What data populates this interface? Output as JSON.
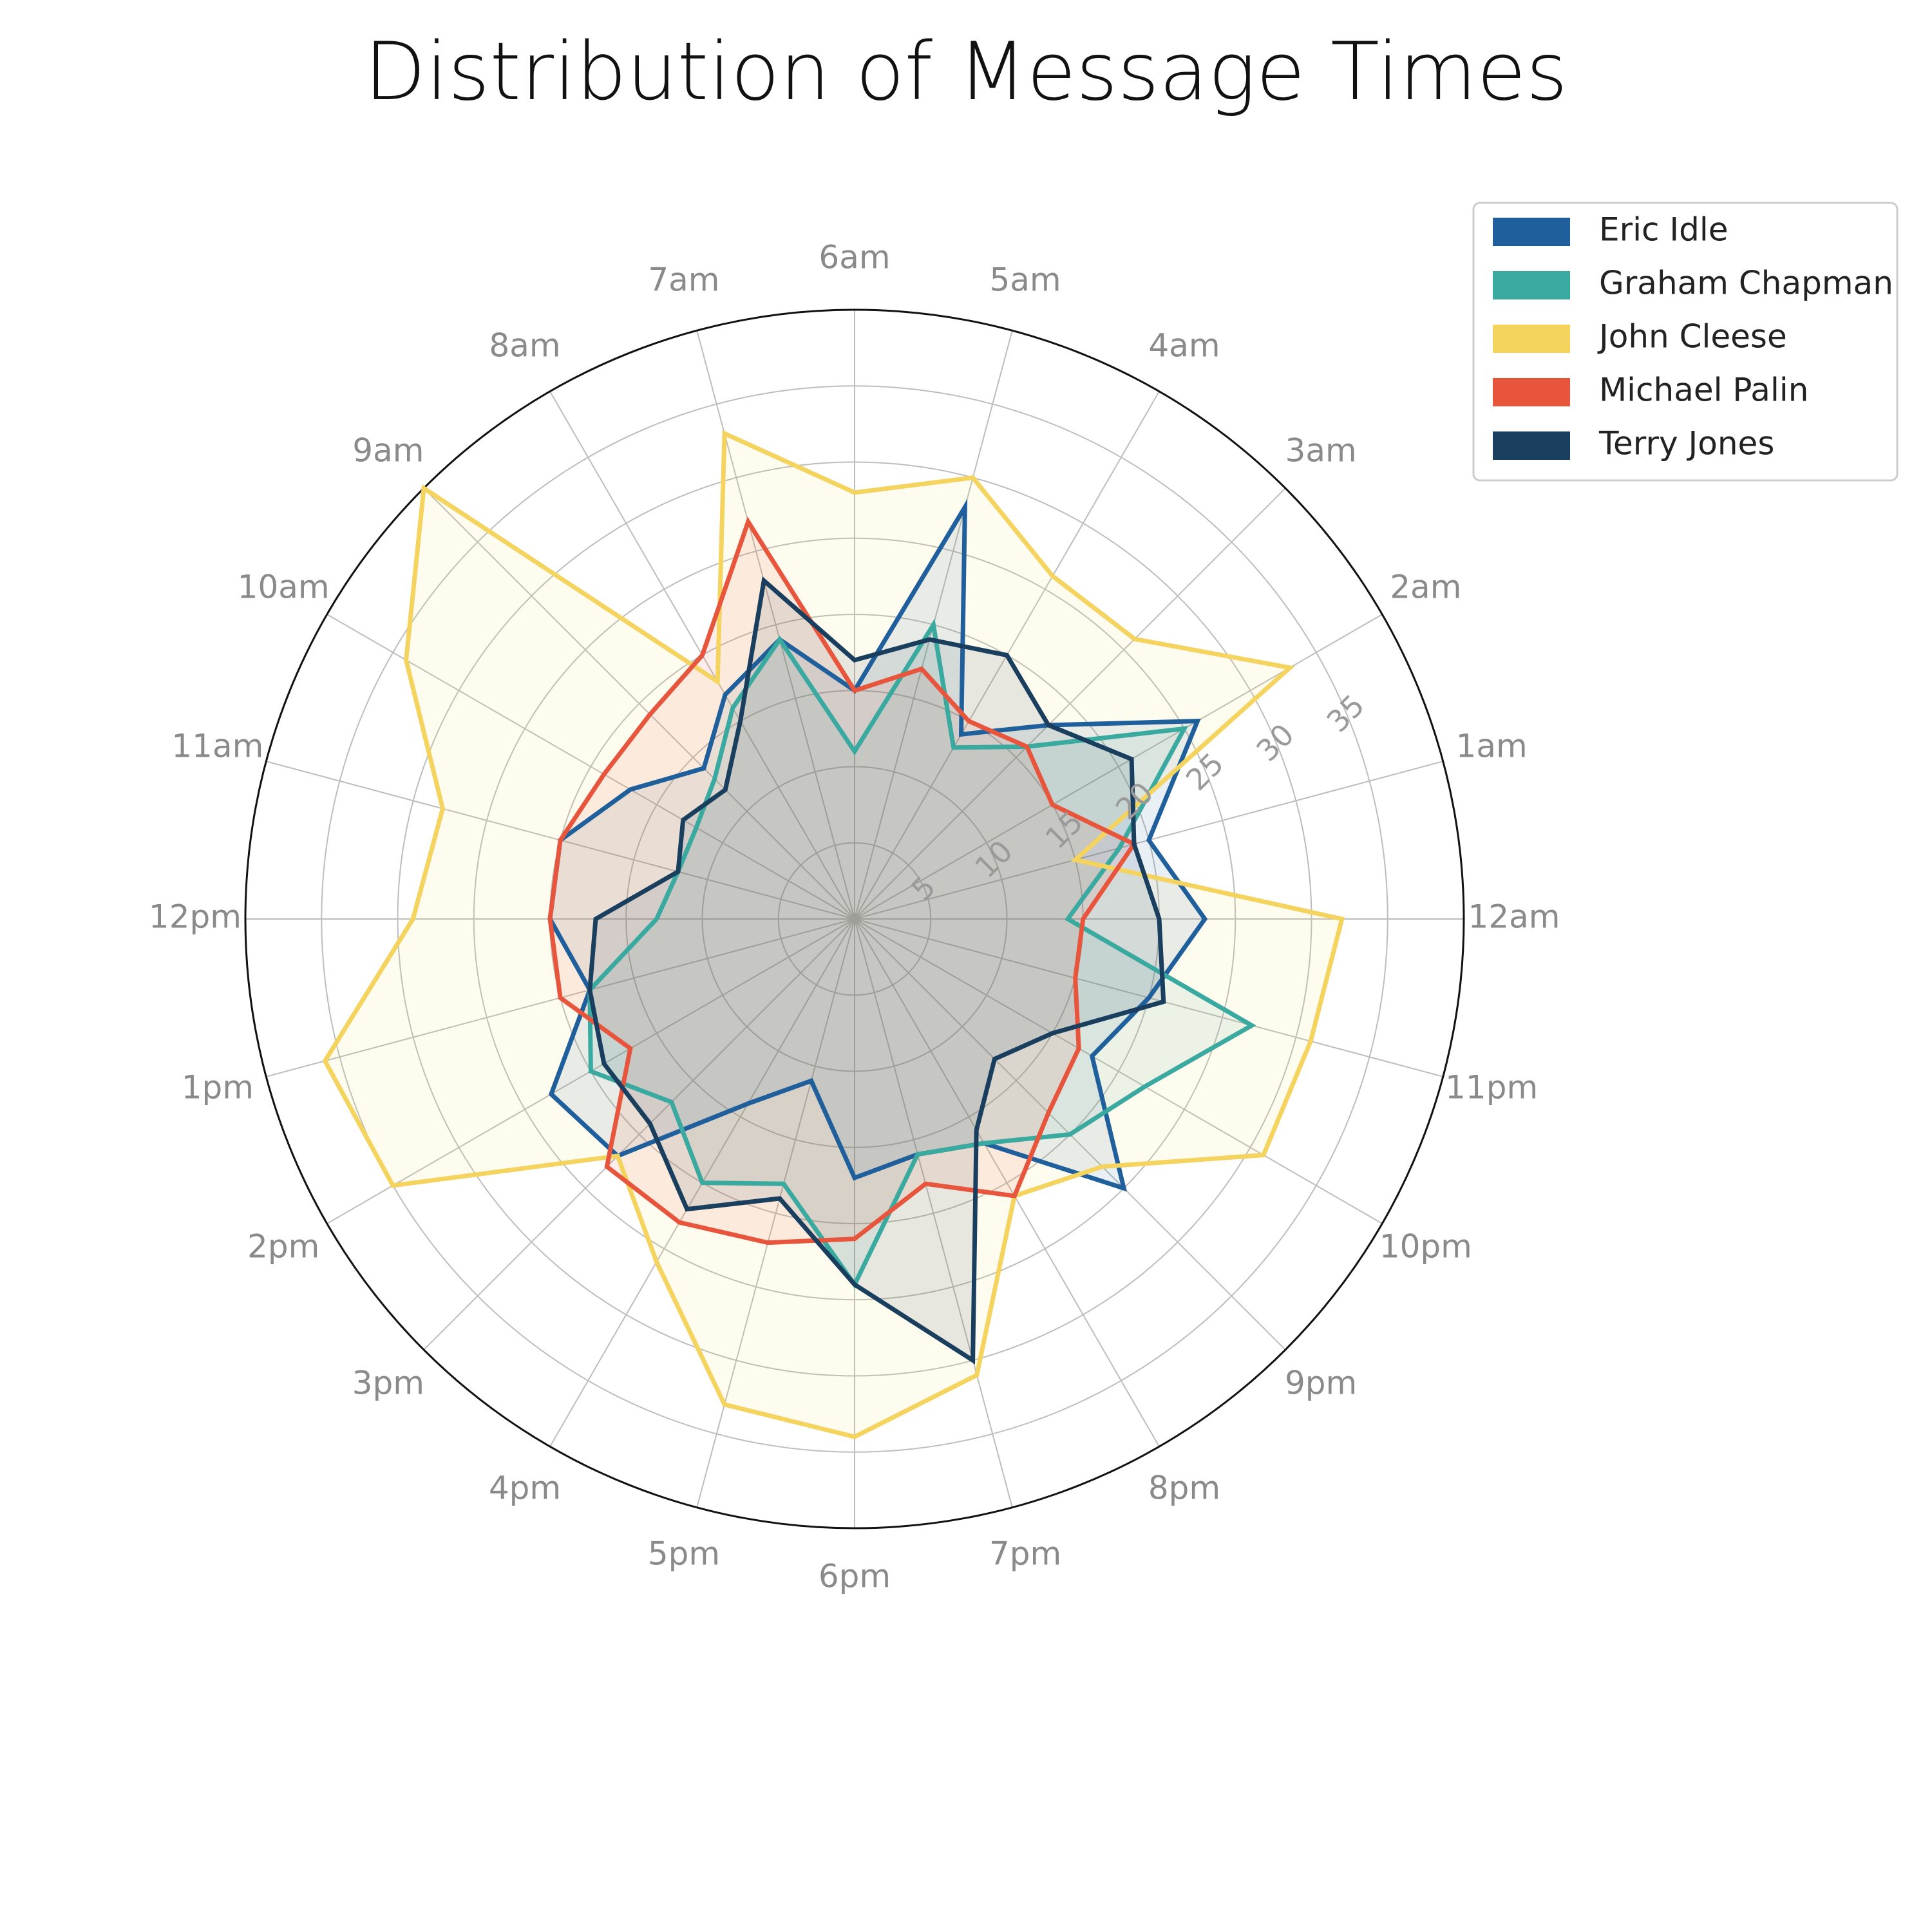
{
  "chart_data": {
    "type": "radar",
    "title": "Distribution of Message Times",
    "categories": [
      "12am",
      "1am",
      "2am",
      "3am",
      "4am",
      "5am",
      "6am",
      "7am",
      "8am",
      "9am",
      "10am",
      "11am",
      "12pm",
      "1pm",
      "2pm",
      "3pm",
      "4pm",
      "5pm",
      "6pm",
      "7pm",
      "8pm",
      "9pm",
      "10pm",
      "11pm"
    ],
    "radial_ticks": [
      5,
      10,
      15,
      20,
      25,
      30,
      35
    ],
    "rlim": [
      0,
      40
    ],
    "grid": true,
    "legend_position": "top-right",
    "series": [
      {
        "name": "Eric Idle",
        "color": "#1f5f9c",
        "values": [
          23,
          20,
          26,
          18,
          14,
          28,
          15,
          19,
          17,
          14,
          17,
          20,
          20,
          18,
          23,
          22,
          14,
          11,
          17,
          16,
          17,
          25,
          18,
          20
        ]
      },
      {
        "name": "Graham Chapman",
        "color": "#3aa99f",
        "values": [
          14,
          18,
          25,
          16,
          13,
          20,
          11,
          19,
          16,
          13,
          12,
          12,
          13,
          18,
          20,
          17,
          20,
          18,
          24,
          16,
          17,
          20,
          22,
          27
        ]
      },
      {
        "name": "John Cleese",
        "color": "#f4d35e",
        "values": [
          32,
          15,
          33,
          26,
          26,
          30,
          28,
          33,
          18,
          40,
          34,
          28,
          29,
          36,
          35,
          22,
          26,
          33,
          34,
          31,
          21,
          23,
          31,
          31
        ]
      },
      {
        "name": "Michael Palin",
        "color": "#e8553d",
        "values": [
          15,
          19,
          15,
          16,
          15,
          17,
          15,
          27,
          20,
          19,
          19,
          20,
          20,
          20,
          17,
          23,
          23,
          22,
          21,
          18,
          21,
          18,
          17,
          15
        ]
      },
      {
        "name": "Terry Jones",
        "color": "#1a3e5e",
        "values": [
          20,
          19,
          21,
          18,
          20,
          19,
          17,
          23,
          15,
          12,
          13,
          12,
          17,
          18,
          19,
          19,
          22,
          19,
          24,
          30,
          16,
          13,
          15,
          21
        ]
      }
    ]
  }
}
